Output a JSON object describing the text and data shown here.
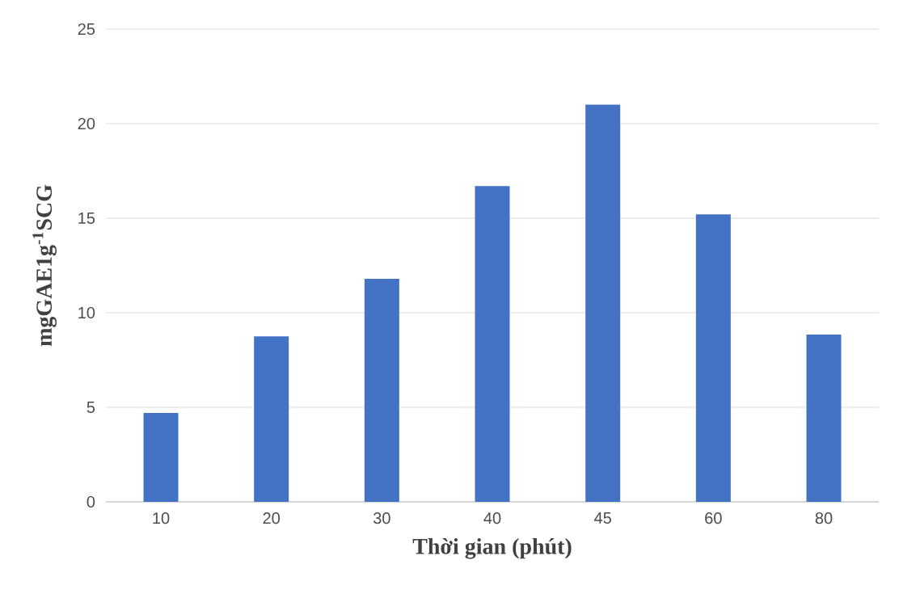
{
  "chart_data": {
    "type": "bar",
    "xlabel": "Thời gian (phút)",
    "ylabel": "mgGAE1g$^{-1}$SCG",
    "categories": [
      "10",
      "20",
      "30",
      "40",
      "45",
      "60",
      "80"
    ],
    "values": [
      4.7,
      8.75,
      11.8,
      16.7,
      21.0,
      15.2,
      8.85
    ],
    "color": "#4472c4",
    "ylim": [
      0,
      25
    ],
    "yticks": [
      0,
      5,
      10,
      15,
      20,
      25
    ],
    "grid": "y"
  }
}
